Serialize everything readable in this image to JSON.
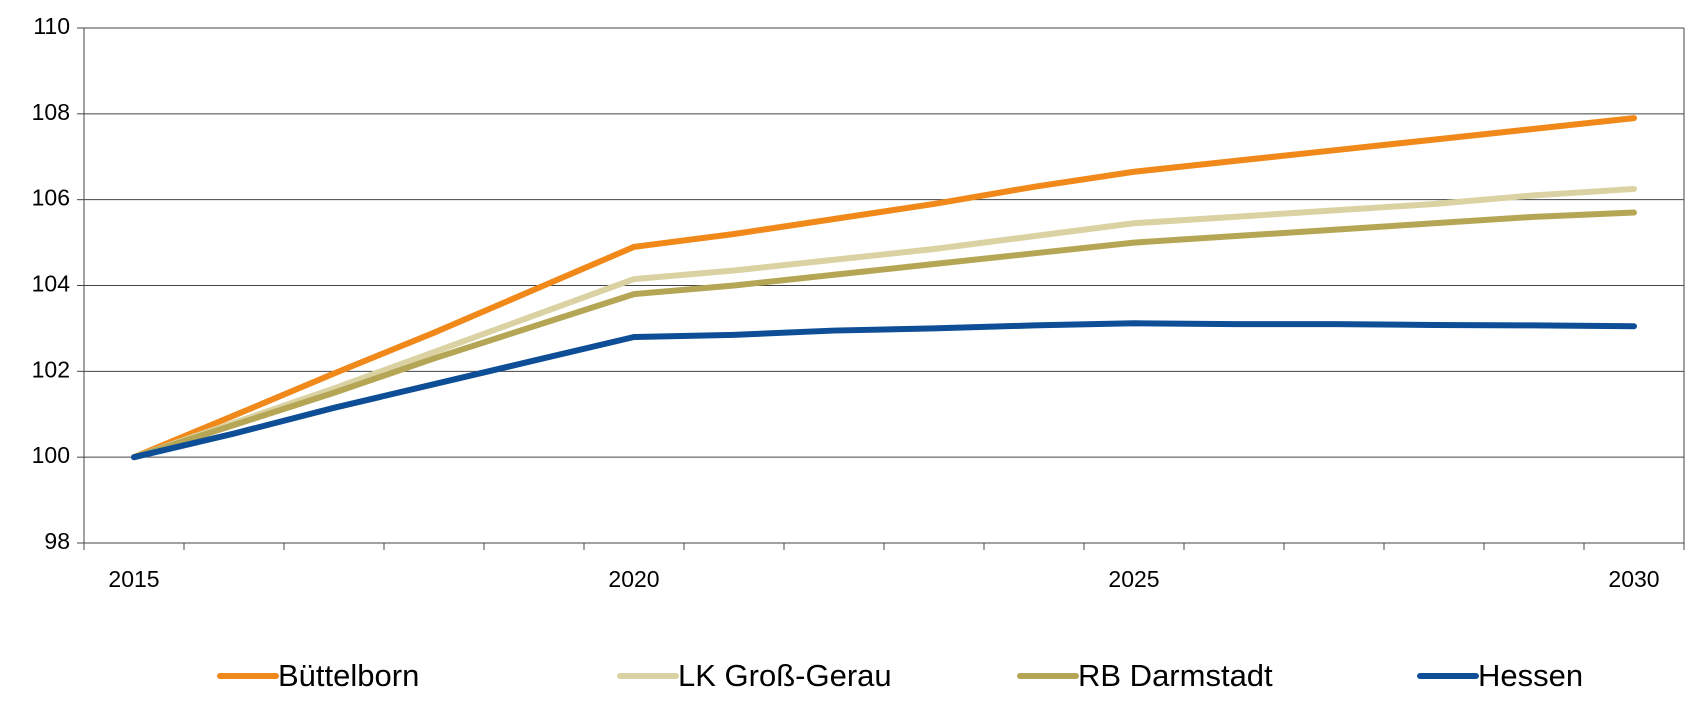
{
  "chart_data": {
    "type": "line",
    "categories": [
      "2015",
      null,
      null,
      null,
      null,
      "2020",
      null,
      null,
      null,
      null,
      "2025",
      null,
      null,
      null,
      null,
      "2030"
    ],
    "ylim": [
      98,
      110
    ],
    "yticks": [
      98,
      100,
      102,
      104,
      106,
      108,
      110
    ],
    "grid": true,
    "legend": "bottom",
    "series": [
      {
        "name": "Büttelborn",
        "color": "#f0891a",
        "values": [
          100,
          100.97,
          101.95,
          102.9,
          103.9,
          104.9,
          105.2,
          105.55,
          105.9,
          106.3,
          106.65,
          106.9,
          107.15,
          107.4,
          107.65,
          107.9
        ]
      },
      {
        "name": "LK Groß-Gerau",
        "color": "#dad2a2",
        "values": [
          100,
          100.8,
          101.6,
          102.45,
          103.3,
          104.15,
          104.35,
          104.6,
          104.85,
          105.15,
          105.45,
          105.6,
          105.75,
          105.9,
          106.1,
          106.25
        ]
      },
      {
        "name": "RB Darmstadt",
        "color": "#b5a655",
        "values": [
          100,
          100.75,
          101.5,
          102.3,
          103.05,
          103.8,
          104.0,
          104.25,
          104.5,
          104.75,
          105.0,
          105.15,
          105.3,
          105.45,
          105.6,
          105.7
        ]
      },
      {
        "name": "Hessen",
        "color": "#0d4e96",
        "values": [
          100,
          100.55,
          101.15,
          101.7,
          102.25,
          102.8,
          102.85,
          102.95,
          103.0,
          103.07,
          103.12,
          103.1,
          103.1,
          103.08,
          103.07,
          103.05
        ]
      }
    ]
  }
}
